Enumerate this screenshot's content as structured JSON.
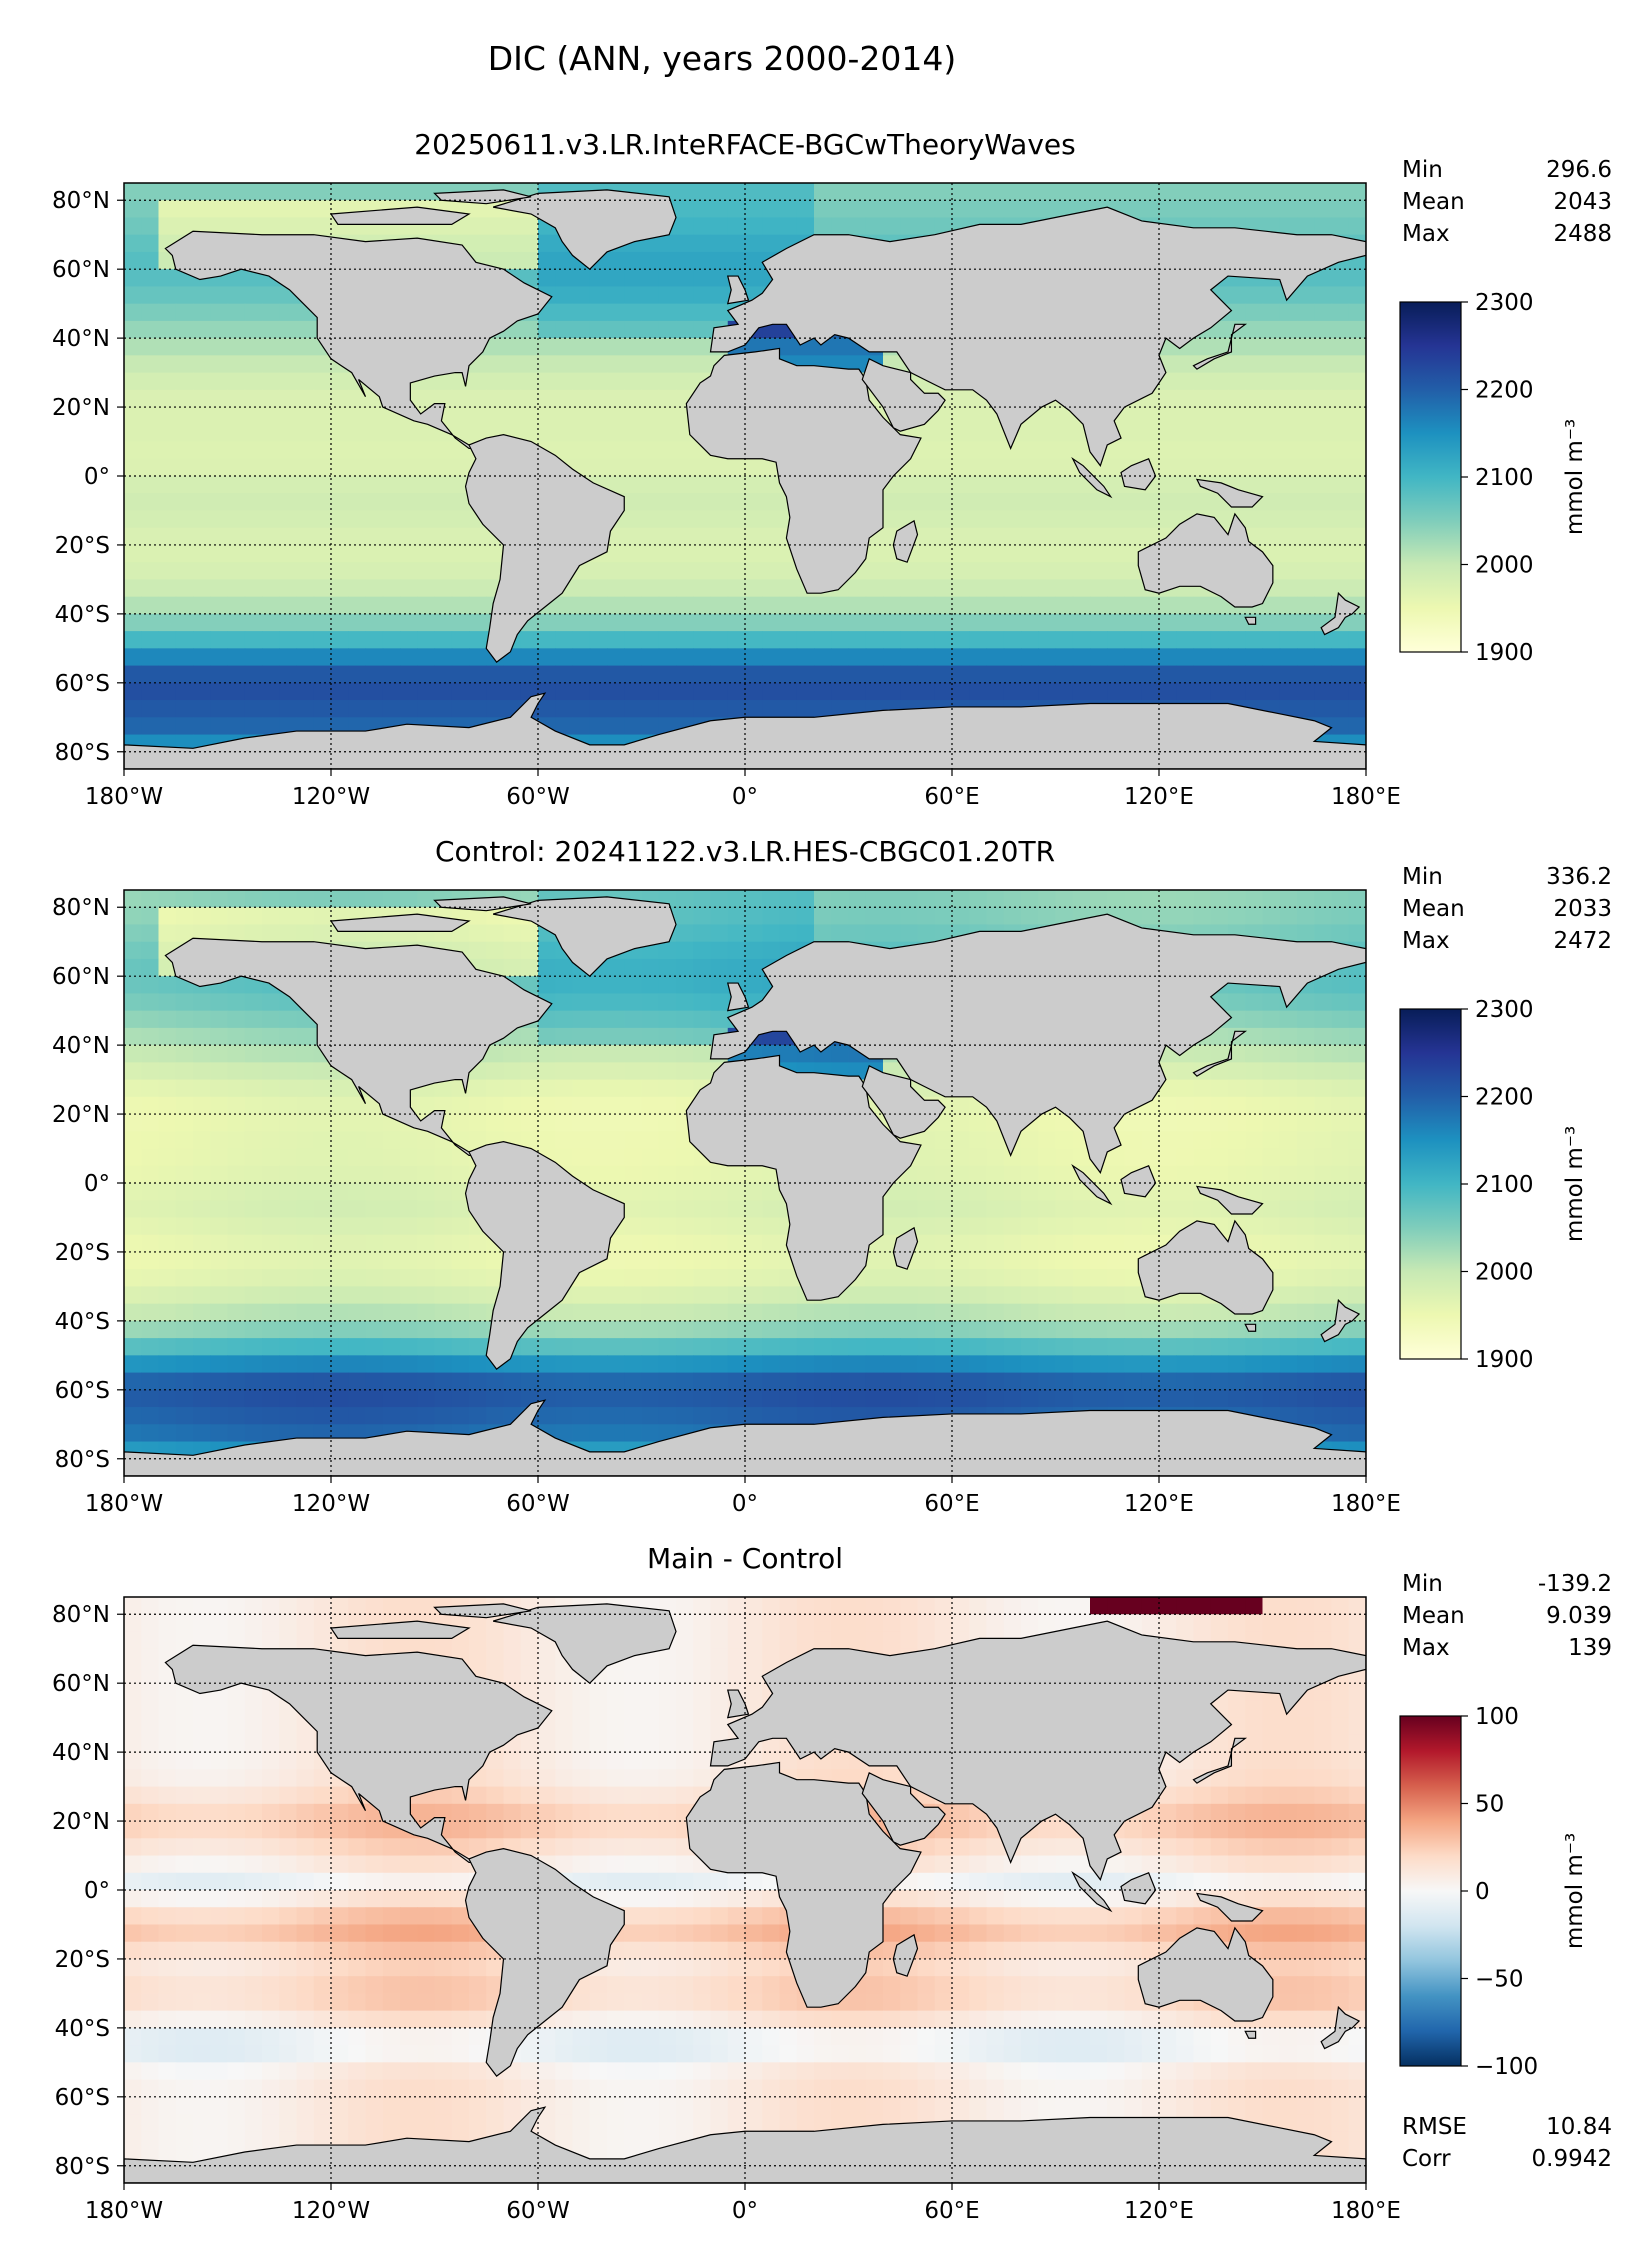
{
  "figure": {
    "title": "DIC (ANN, years 2000-2014)"
  },
  "colors": {
    "land": "#cccccc",
    "seq": [
      "#ffffd9",
      "#edf8b1",
      "#c7e9b4",
      "#7fcdbb",
      "#41b6c4",
      "#1d91c0",
      "#225ea8",
      "#253494",
      "#081d58"
    ],
    "div": [
      "#053061",
      "#2166ac",
      "#4393c3",
      "#92c5de",
      "#d1e5f0",
      "#f7f7f7",
      "#fddbc7",
      "#f4a582",
      "#d6604d",
      "#b2182b",
      "#67001f"
    ]
  },
  "axes_common": {
    "lon_ticks": [
      "180°W",
      "120°W",
      "60°W",
      "0°",
      "60°E",
      "120°E",
      "180°E"
    ],
    "lat_ticks": [
      "80°N",
      "60°N",
      "40°N",
      "20°N",
      "0°",
      "20°S",
      "40°S",
      "60°S",
      "80°S"
    ]
  },
  "chart_data": [
    {
      "type": "heatmap",
      "title": "20250611.v3.LR.InteRFACE-BGCwTheoryWaves",
      "variable": "DIC",
      "xlim": [
        -180,
        180
      ],
      "ylim": [
        -85,
        85
      ],
      "colormap": "YlGnBu",
      "colorbar": {
        "range": [
          1900,
          2300
        ],
        "ticks": [
          "2300",
          "2200",
          "2100",
          "2000",
          "1900"
        ],
        "label": "mmol m⁻³"
      },
      "stats": [
        {
          "label": "Min",
          "value": "296.6"
        },
        {
          "label": "Mean",
          "value": "2043"
        },
        {
          "label": "Max",
          "value": "2488"
        }
      ]
    },
    {
      "type": "heatmap",
      "title": "Control: 20241122.v3.LR.HES-CBGC01.20TR",
      "variable": "DIC",
      "xlim": [
        -180,
        180
      ],
      "ylim": [
        -85,
        85
      ],
      "colormap": "YlGnBu",
      "colorbar": {
        "range": [
          1900,
          2300
        ],
        "ticks": [
          "2300",
          "2200",
          "2100",
          "2000",
          "1900"
        ],
        "label": "mmol m⁻³"
      },
      "stats": [
        {
          "label": "Min",
          "value": "336.2"
        },
        {
          "label": "Mean",
          "value": "2033"
        },
        {
          "label": "Max",
          "value": "2472"
        }
      ]
    },
    {
      "type": "heatmap",
      "title": "Main - Control",
      "variable": "DIC difference",
      "xlim": [
        -180,
        180
      ],
      "ylim": [
        -85,
        85
      ],
      "colormap": "RdBu_r",
      "colorbar": {
        "range": [
          -100,
          100
        ],
        "ticks": [
          "100",
          "50",
          "0",
          "−50",
          "−100"
        ],
        "label": "mmol m⁻³"
      },
      "stats": [
        {
          "label": "Min",
          "value": "-139.2"
        },
        {
          "label": "Mean",
          "value": "9.039"
        },
        {
          "label": "Max",
          "value": "139"
        }
      ],
      "extra_stats": [
        {
          "label": "RMSE",
          "value": "10.84"
        },
        {
          "label": "Corr",
          "value": "0.9942"
        }
      ]
    }
  ]
}
